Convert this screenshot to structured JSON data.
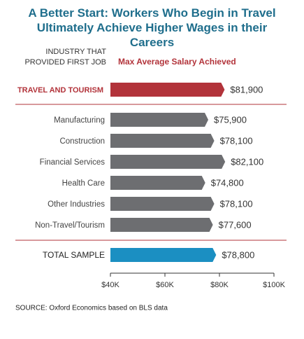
{
  "chart_data": {
    "type": "bar",
    "orientation": "horizontal",
    "title": "A Better Start: Workers Who Begin in Travel Ultimately Achieve Higher Wages in their Careers",
    "ylabel": [
      "INDUSTRY THAT",
      "PROVIDED FIRST JOB"
    ],
    "xlabel": "Max Average Salary Achieved",
    "categories": [
      "TRAVEL AND TOURISM",
      "Manufacturing",
      "Construction",
      "Financial Services",
      "Health Care",
      "Other Industries",
      "Non-Travel/Tourism",
      "TOTAL SAMPLE"
    ],
    "values": [
      81900,
      75900,
      78100,
      82100,
      74800,
      78100,
      77600,
      78800
    ],
    "value_labels": [
      "$81,900",
      "$75,900",
      "$78,100",
      "$82,100",
      "$74,800",
      "$78,100",
      "$77,600",
      "$78,800"
    ],
    "colors": [
      "#b2333a",
      "#6d6e71",
      "#6d6e71",
      "#6d6e71",
      "#6d6e71",
      "#6d6e71",
      "#6d6e71",
      "#1b8fc2"
    ],
    "xlim": [
      40000,
      100000
    ],
    "xticks": [
      {
        "value": 40000,
        "label": "$40K"
      },
      {
        "value": 60000,
        "label": "$60K"
      },
      {
        "value": 80000,
        "label": "$80K"
      },
      {
        "value": 100000,
        "label": "$100K"
      }
    ],
    "grid": false,
    "source": "SOURCE: Oxford Economics based on BLS data"
  }
}
